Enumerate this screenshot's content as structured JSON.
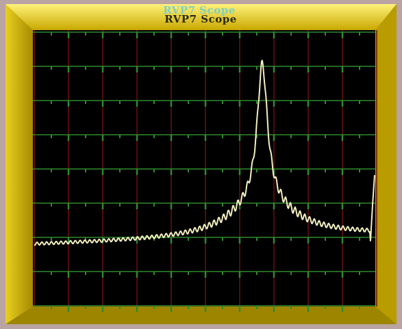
{
  "window": {
    "title": "RVP7 Scope"
  }
}
